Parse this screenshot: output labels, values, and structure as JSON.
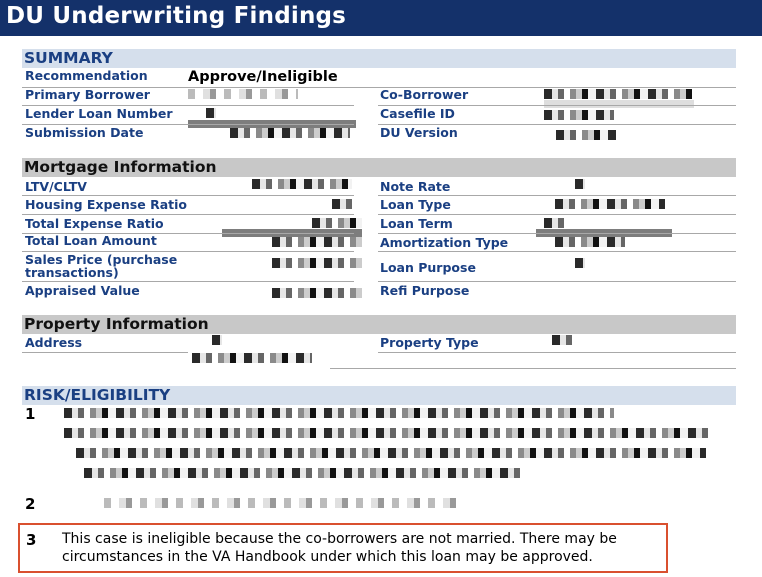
{
  "header": {
    "title": "DU Underwriting Findings"
  },
  "summary": {
    "title": "SUMMARY",
    "recommendation_label": "Recommendation",
    "recommendation_value": "Approve/Ineligible",
    "primary_borrower_label": "Primary Borrower",
    "co_borrower_label": "Co-Borrower",
    "lender_loan_number_label": "Lender Loan Number",
    "casefile_id_label": "Casefile ID",
    "submission_date_label": "Submission Date",
    "du_version_label": "DU Version"
  },
  "mortgage": {
    "title": "Mortgage Information",
    "ltv_label": "LTV/CLTV",
    "note_rate_label": "Note Rate",
    "housing_ratio_label": "Housing Expense Ratio",
    "loan_type_label": "Loan Type",
    "total_ratio_label": "Total Expense Ratio",
    "loan_term_label": "Loan Term",
    "total_loan_label": "Total Loan Amount",
    "amortization_label": "Amortization Type",
    "sales_price_label": "Sales Price (purchase transactions)",
    "loan_purpose_label": "Loan Purpose",
    "appraised_label": "Appraised Value",
    "refi_purpose_label": "Refi Purpose"
  },
  "property": {
    "title": "Property Information",
    "address_label": "Address",
    "property_type_label": "Property Type"
  },
  "risk": {
    "title": "RISK/ELIGIBILITY",
    "items": [
      {
        "number": "1"
      },
      {
        "number": "2"
      },
      {
        "number": "3",
        "text": "This case is ineligible because the co-borrowers are not married. There may be circumstances in the VA Handbook under which this loan may be approved."
      }
    ]
  }
}
